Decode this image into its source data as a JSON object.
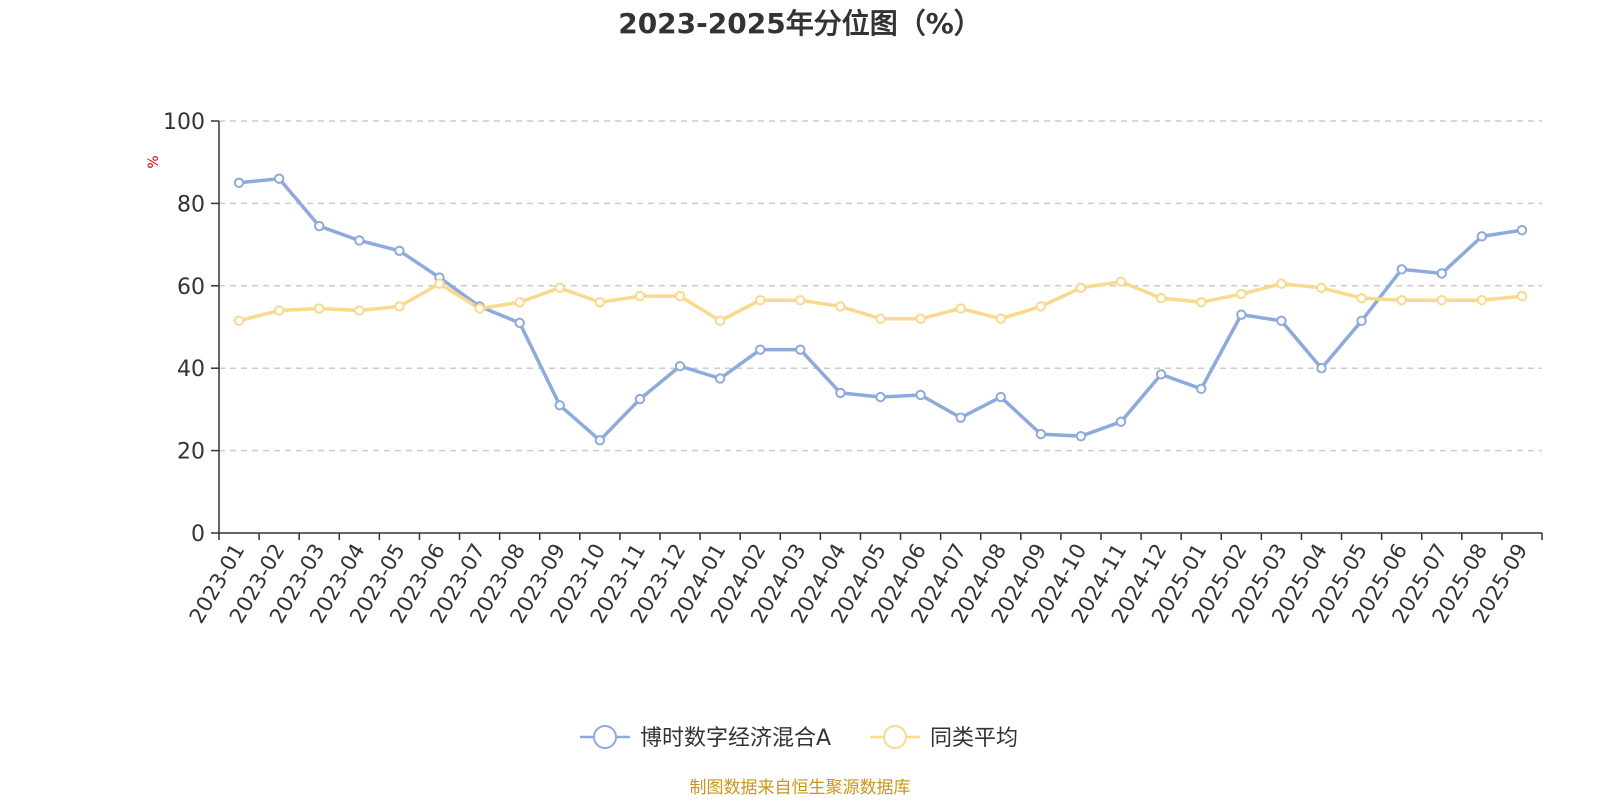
{
  "chart_data": {
    "type": "line",
    "title": "2023-2025年分位图（%）",
    "ylabel": "%",
    "ylim": [
      0,
      100
    ],
    "yticks": [
      "0",
      "20",
      "40",
      "60",
      "80",
      "100"
    ],
    "grid": true,
    "legend_position": "bottom",
    "categories": [
      "2023-01",
      "2023-02",
      "2023-03",
      "2023-04",
      "2023-05",
      "2023-06",
      "2023-07",
      "2023-08",
      "2023-09",
      "2023-10",
      "2023-11",
      "2023-12",
      "2024-01",
      "2024-02",
      "2024-03",
      "2024-04",
      "2024-05",
      "2024-06",
      "2024-07",
      "2024-08",
      "2024-09",
      "2024-10",
      "2024-11",
      "2024-12",
      "2025-01",
      "2025-02",
      "2025-03",
      "2025-04",
      "2025-05",
      "2025-06",
      "2025-07",
      "2025-08",
      "2025-09"
    ],
    "series": [
      {
        "name": "博时数字经济混合A",
        "color": "#8eaadb",
        "values": [
          85,
          86,
          74.5,
          71,
          68.5,
          62,
          55,
          51,
          31,
          22.5,
          32.5,
          40.5,
          37.5,
          44.5,
          44.5,
          34,
          33,
          33.5,
          28,
          33,
          24,
          23.5,
          27,
          38.5,
          35,
          53,
          51.5,
          40,
          51.5,
          64,
          63,
          72,
          73.5
        ]
      },
      {
        "name": "同类平均",
        "color": "#f9d98d",
        "values": [
          51.5,
          54,
          54.5,
          54,
          55,
          60.5,
          54.5,
          56,
          59.5,
          56,
          57.5,
          57.5,
          51.5,
          56.5,
          56.5,
          55,
          52,
          52,
          54.5,
          52,
          55,
          59.5,
          61,
          57,
          56,
          58,
          60.5,
          59.5,
          57,
          56.5,
          56.5,
          56.5,
          57.5
        ]
      }
    ]
  },
  "source_text": "制图数据来自恒生聚源数据库"
}
